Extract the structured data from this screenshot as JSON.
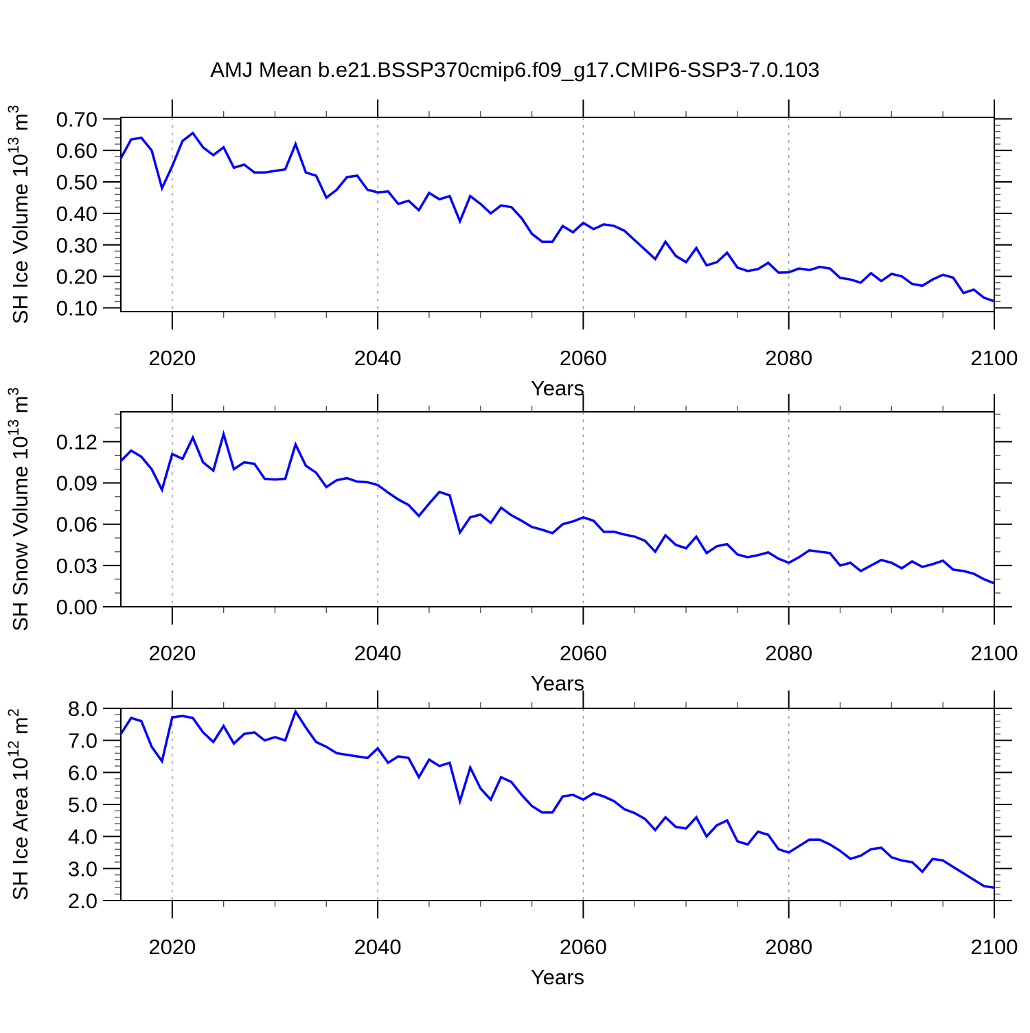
{
  "title": "AMJ Mean b.e21.BSSP370cmip6.f09_g17.CMIP6-SSP3-7.0.103",
  "colors": {
    "line": "#0000ff",
    "gridline": "#999999",
    "axis": "#000000",
    "minor_tick": "#555555",
    "background": "#ffffff"
  },
  "chart_data": [
    {
      "type": "line",
      "id": "sh-ice-volume",
      "ylabel": "SH Ice Volume 10¹³ m³",
      "ylabel_rich": [
        {
          "t": "SH Ice Volume 10"
        },
        {
          "t": "13",
          "sup": true
        },
        {
          "t": " m"
        },
        {
          "t": "3",
          "sup": true
        }
      ],
      "xlabel": "Years",
      "xlim": [
        2015,
        2100
      ],
      "x_start": 2015,
      "x_step": 1,
      "xtick_labels": [
        "2020",
        "2040",
        "2060",
        "2080",
        "2100"
      ],
      "xticks_major": [
        2020,
        2040,
        2060,
        2080,
        2100
      ],
      "xticks_minor_step": 5,
      "gridlines_x": [
        2020,
        2040,
        2060,
        2080
      ],
      "grid": "vertical-dashed",
      "legend": "none",
      "ylim": [
        0.088,
        0.705
      ],
      "yticks": [
        0.1,
        0.2,
        0.3,
        0.4,
        0.5,
        0.6,
        0.7
      ],
      "ytick_labels": [
        "0.10",
        "0.20",
        "0.30",
        "0.40",
        "0.50",
        "0.60",
        "0.70"
      ],
      "ytick_minor_step": 0.02,
      "values": [
        0.575,
        0.635,
        0.64,
        0.6,
        0.48,
        0.55,
        0.63,
        0.655,
        0.61,
        0.585,
        0.61,
        0.545,
        0.555,
        0.53,
        0.53,
        0.535,
        0.54,
        0.62,
        0.53,
        0.52,
        0.45,
        0.475,
        0.515,
        0.52,
        0.475,
        0.467,
        0.47,
        0.43,
        0.44,
        0.41,
        0.465,
        0.445,
        0.455,
        0.375,
        0.455,
        0.43,
        0.4,
        0.425,
        0.42,
        0.385,
        0.335,
        0.31,
        0.31,
        0.36,
        0.34,
        0.37,
        0.35,
        0.365,
        0.36,
        0.345,
        0.315,
        0.285,
        0.255,
        0.31,
        0.265,
        0.245,
        0.29,
        0.235,
        0.245,
        0.275,
        0.228,
        0.217,
        0.223,
        0.243,
        0.212,
        0.213,
        0.225,
        0.22,
        0.23,
        0.225,
        0.195,
        0.19,
        0.18,
        0.21,
        0.185,
        0.208,
        0.2,
        0.176,
        0.17,
        0.19,
        0.205,
        0.196,
        0.147,
        0.158,
        0.132,
        0.121
      ]
    },
    {
      "type": "line",
      "id": "sh-snow-volume",
      "ylabel": "SH Snow Volume 10¹³ m³",
      "ylabel_rich": [
        {
          "t": "SH Snow Volume 10"
        },
        {
          "t": "13",
          "sup": true
        },
        {
          "t": " m"
        },
        {
          "t": "3",
          "sup": true
        }
      ],
      "xlabel": "Years",
      "xlim": [
        2015,
        2100
      ],
      "x_start": 2015,
      "x_step": 1,
      "xtick_labels": [
        "2020",
        "2040",
        "2060",
        "2080",
        "2100"
      ],
      "xticks_major": [
        2020,
        2040,
        2060,
        2080,
        2100
      ],
      "xticks_minor_step": 5,
      "gridlines_x": [
        2020,
        2040,
        2060,
        2080
      ],
      "grid": "vertical-dashed",
      "legend": "none",
      "ylim": [
        0.0,
        0.1417
      ],
      "yticks": [
        0.0,
        0.03,
        0.06,
        0.09,
        0.12
      ],
      "ytick_labels": [
        "0.00",
        "0.03",
        "0.06",
        "0.09",
        "0.12"
      ],
      "ytick_minor_step": 0.01,
      "values": [
        0.106,
        0.1135,
        0.109,
        0.1,
        0.085,
        0.111,
        0.1075,
        0.123,
        0.105,
        0.099,
        0.1255,
        0.1,
        0.105,
        0.104,
        0.093,
        0.0925,
        0.093,
        0.118,
        0.1025,
        0.0975,
        0.087,
        0.092,
        0.0935,
        0.091,
        0.0905,
        0.0885,
        0.083,
        0.078,
        0.074,
        0.066,
        0.075,
        0.0835,
        0.081,
        0.054,
        0.065,
        0.067,
        0.061,
        0.072,
        0.0665,
        0.0625,
        0.058,
        0.056,
        0.0535,
        0.06,
        0.062,
        0.065,
        0.0625,
        0.0545,
        0.0545,
        0.0525,
        0.051,
        0.048,
        0.04,
        0.052,
        0.045,
        0.0425,
        0.051,
        0.039,
        0.044,
        0.0455,
        0.038,
        0.036,
        0.0375,
        0.0395,
        0.035,
        0.032,
        0.036,
        0.041,
        0.04,
        0.039,
        0.03,
        0.032,
        0.026,
        0.03,
        0.034,
        0.032,
        0.028,
        0.033,
        0.029,
        0.031,
        0.0335,
        0.027,
        0.026,
        0.024,
        0.02,
        0.017
      ]
    },
    {
      "type": "line",
      "id": "sh-ice-area",
      "ylabel": "SH Ice Area 10¹² m²",
      "ylabel_rich": [
        {
          "t": "SH Ice Area 10"
        },
        {
          "t": "12",
          "sup": true
        },
        {
          "t": " m"
        },
        {
          "t": "2",
          "sup": true
        }
      ],
      "xlabel": "Years",
      "xlim": [
        2015,
        2100
      ],
      "x_start": 2015,
      "x_step": 1,
      "xtick_labels": [
        "2020",
        "2040",
        "2060",
        "2080",
        "2100"
      ],
      "xticks_major": [
        2020,
        2040,
        2060,
        2080,
        2100
      ],
      "xticks_minor_step": 5,
      "gridlines_x": [
        2020,
        2040,
        2060,
        2080
      ],
      "grid": "vertical-dashed",
      "legend": "none",
      "ylim": [
        2.0,
        8.0
      ],
      "yticks": [
        2.0,
        3.0,
        4.0,
        5.0,
        6.0,
        7.0,
        8.0
      ],
      "ytick_labels": [
        "2.0",
        "3.0",
        "4.0",
        "5.0",
        "6.0",
        "7.0",
        "8.0"
      ],
      "ytick_minor_step": 0.2,
      "values": [
        7.2,
        7.7,
        7.6,
        6.8,
        6.35,
        7.72,
        7.76,
        7.7,
        7.25,
        6.95,
        7.45,
        6.9,
        7.2,
        7.25,
        7.0,
        7.1,
        7.0,
        7.9,
        7.4,
        6.95,
        6.8,
        6.6,
        6.55,
        6.5,
        6.45,
        6.75,
        6.3,
        6.5,
        6.45,
        5.85,
        6.4,
        6.2,
        6.3,
        5.1,
        6.15,
        5.5,
        5.15,
        5.85,
        5.7,
        5.3,
        4.95,
        4.75,
        4.75,
        5.25,
        5.3,
        5.15,
        5.35,
        5.25,
        5.1,
        4.85,
        4.73,
        4.55,
        4.2,
        4.6,
        4.3,
        4.25,
        4.6,
        4.0,
        4.35,
        4.5,
        3.85,
        3.75,
        4.15,
        4.05,
        3.6,
        3.5,
        3.7,
        3.9,
        3.9,
        3.75,
        3.55,
        3.3,
        3.4,
        3.6,
        3.65,
        3.35,
        3.25,
        3.2,
        2.9,
        3.3,
        3.25,
        3.05,
        2.85,
        2.65,
        2.45,
        2.4
      ]
    }
  ]
}
